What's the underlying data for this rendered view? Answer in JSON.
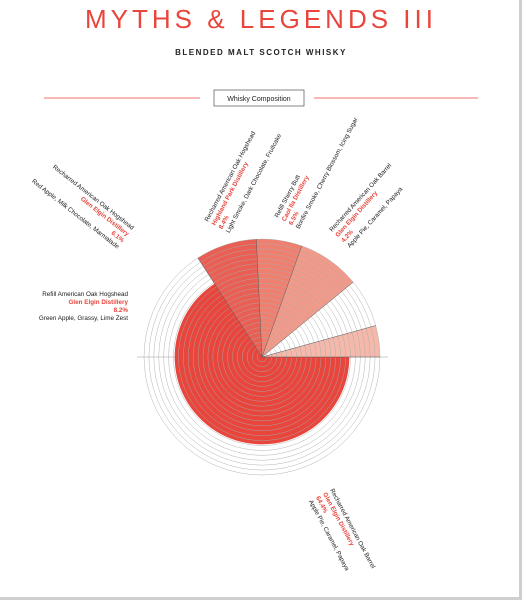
{
  "header": {
    "title": "MYTHS & LEGENDS III",
    "subtitle": "BLENDED MALT SCOTCH WHISKY"
  },
  "colors": {
    "accent": "#e8453c",
    "rule": "#e8453c",
    "ring": "#aaaaaa"
  },
  "chart_data": {
    "type": "pie",
    "title": "Whisky Composition",
    "unit": "%",
    "slices": [
      {
        "cask": "Recharred American Oak Barrel",
        "distillery": "Glen Elgin Distillery",
        "value": 64.4,
        "value_label": "64.4%",
        "notes": "Apple Pie, Caramel, Papaya",
        "color": "#e8453c"
      },
      {
        "cask": "Refill American Oak Hogshead",
        "distillery": "Glen Elgin Distillery",
        "value": 8.2,
        "value_label": "8.2%",
        "notes": "Green Apple, Grassy, Lime Zest",
        "color": "#e95f54"
      },
      {
        "cask": "Recharred American Oak Hogshead",
        "distillery": "Glen Elgin Distillery",
        "value": 6.1,
        "value_label": "6.1%",
        "notes": "Red Apple, Milk Chocolate, Marmalade",
        "color": "#ef8070"
      },
      {
        "cask": "Recharred American Oak Hogshead",
        "distillery": "Highland Park Distillery",
        "value": 8.4,
        "value_label": "8.4%",
        "notes": "Light Smoke, Dark Chocolate, Fruitcake",
        "color": "#f19a8a"
      },
      {
        "cask": "Refill Sherry Butt",
        "distillery": "Caol Ila Distillery",
        "value": 6.5,
        "value_label": "6.5%",
        "notes": "Bonfire Smoke, Cherry Blossom, Icing Sugar",
        "color": "#ffffff"
      },
      {
        "cask": "Recharred American Oak Barrel",
        "distillery": "Glen Elgin Distillery",
        "value": 4.2,
        "value_label": "4.2%",
        "notes": "Apple Pie, Caramel, Papaya",
        "color": "#f5b9ab"
      }
    ]
  }
}
